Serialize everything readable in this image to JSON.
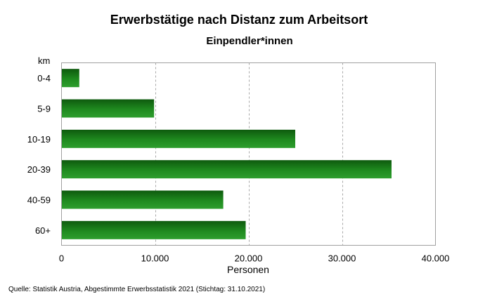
{
  "chart_data": {
    "type": "bar",
    "orientation": "horizontal",
    "title": "Erwerbstätige nach Distanz zum Arbeitsort",
    "subtitle": "Einpendler*innen",
    "ylabel": "km",
    "xlabel": "Personen",
    "categories": [
      "0-4",
      "5-9",
      "10-19",
      "20-39",
      "40-59",
      "60+"
    ],
    "values": [
      1900,
      9900,
      25000,
      35300,
      17300,
      19700
    ],
    "xlim": [
      0,
      40000
    ],
    "xticks": [
      0,
      10000,
      20000,
      30000,
      40000
    ],
    "xtick_labels": [
      "0",
      "10.000",
      "20.000",
      "30.000",
      "40.000"
    ],
    "grid": "vertical dashed",
    "bar_color": "#1d7a1d",
    "source": "Quelle: Statistik Austria, Abgestimmte Erwerbsstatistik 2021 (Stichtag: 31.10.2021)"
  }
}
